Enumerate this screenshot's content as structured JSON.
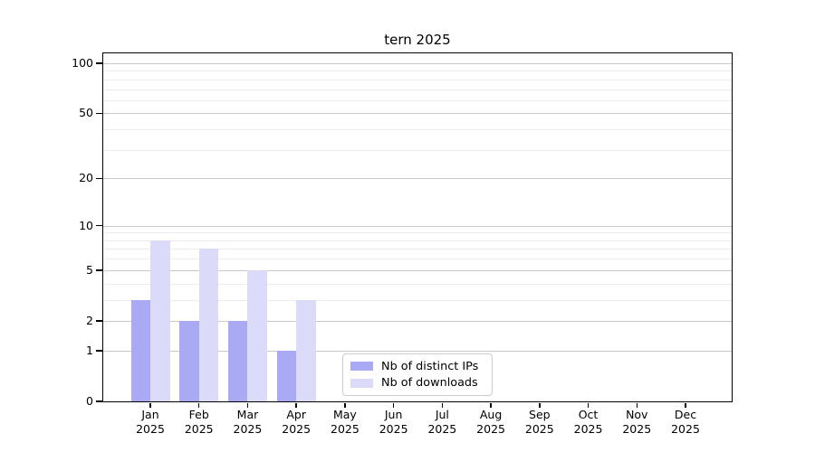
{
  "chart_data": {
    "type": "bar",
    "title": "tern 2025",
    "categories": [
      "Jan",
      "Feb",
      "Mar",
      "Apr",
      "May",
      "Jun",
      "Jul",
      "Aug",
      "Sep",
      "Oct",
      "Nov",
      "Dec"
    ],
    "x_year_label": "2025",
    "series": [
      {
        "name": "Nb of distinct IPs",
        "color": "#a9a9f4",
        "values": [
          3,
          2,
          2,
          1,
          0,
          0,
          0,
          0,
          0,
          0,
          0,
          0
        ]
      },
      {
        "name": "Nb of downloads",
        "color": "#dbdbf9",
        "values": [
          8,
          7,
          5,
          3,
          0,
          0,
          0,
          0,
          0,
          0,
          0,
          0
        ]
      }
    ],
    "yscale": "log10(1+x)",
    "yticks_major": [
      0,
      1,
      2,
      5,
      10,
      20,
      50,
      100
    ],
    "yticks_minor": [
      3,
      4,
      6,
      7,
      8,
      9,
      30,
      40,
      60,
      70,
      80,
      90
    ],
    "ylim": [
      0,
      115
    ],
    "xlabel": "",
    "ylabel": "",
    "grid": true,
    "legend_position": "inside-bottom-center",
    "colors": {
      "grid_major": "#c9c9c9",
      "grid_minor": "#ececec",
      "axis": "#000000",
      "background": "#ffffff",
      "legend_border": "#cccccc"
    }
  }
}
